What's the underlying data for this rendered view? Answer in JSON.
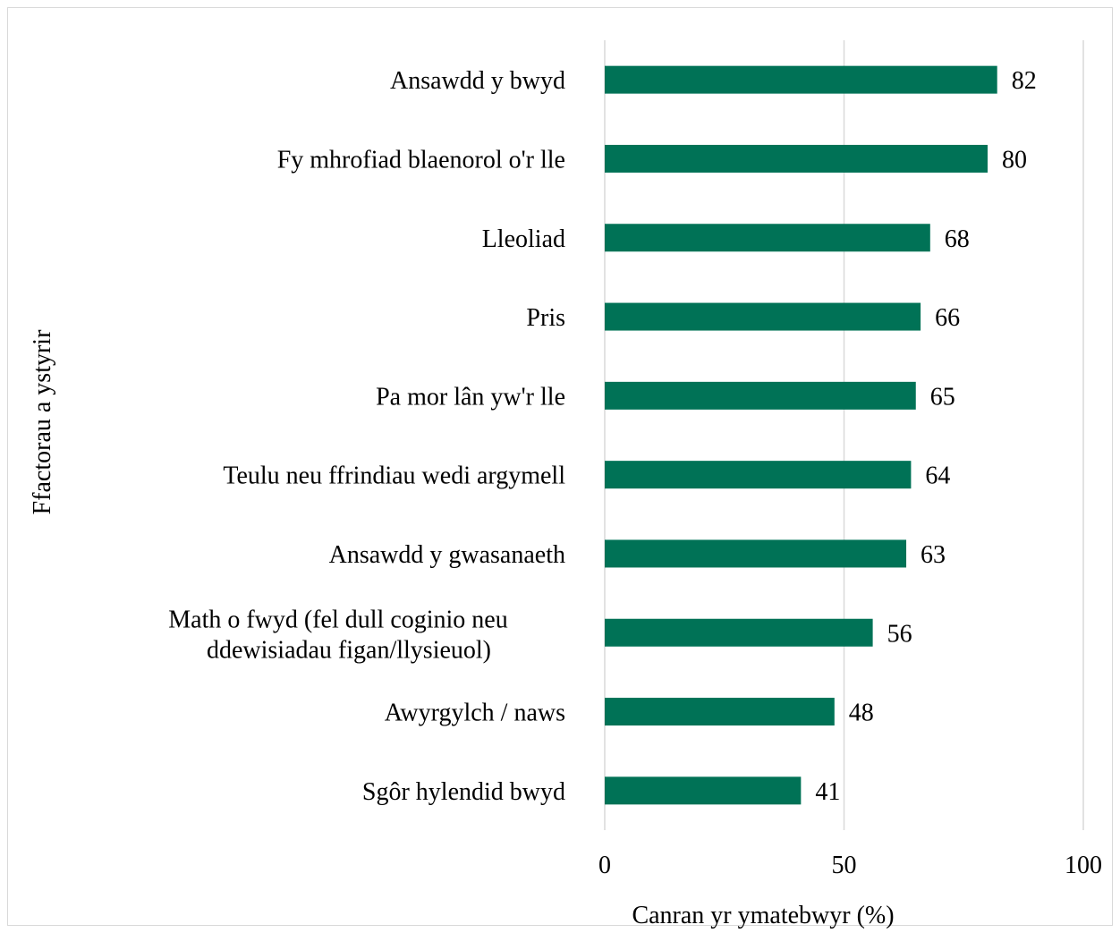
{
  "chart_data": {
    "type": "bar",
    "orientation": "horizontal",
    "categories": [
      "Ansawdd y bwyd",
      "Fy mhrofiad blaenorol o'r lle",
      "Lleoliad",
      "Pris",
      "Pa mor lân yw'r lle",
      "Teulu neu ffrindiau wedi argymell",
      "Ansawdd y gwasanaeth",
      "Math o fwyd (fel dull coginio neu ddewisiadau figan/llysieuol)",
      "Awyrgylch / naws",
      "Sgôr hylendid bwyd"
    ],
    "values": [
      82,
      80,
      68,
      66,
      65,
      64,
      63,
      56,
      48,
      41
    ],
    "xlabel": "Canran yr ymatebwyr (%)",
    "ylabel": "Ffactorau a ystyrir",
    "xlim": [
      0,
      100
    ],
    "xticks": [
      "0",
      "50",
      "100"
    ],
    "grid": true,
    "bar_color": "#007256",
    "grid_color": "#d9d9d9"
  }
}
